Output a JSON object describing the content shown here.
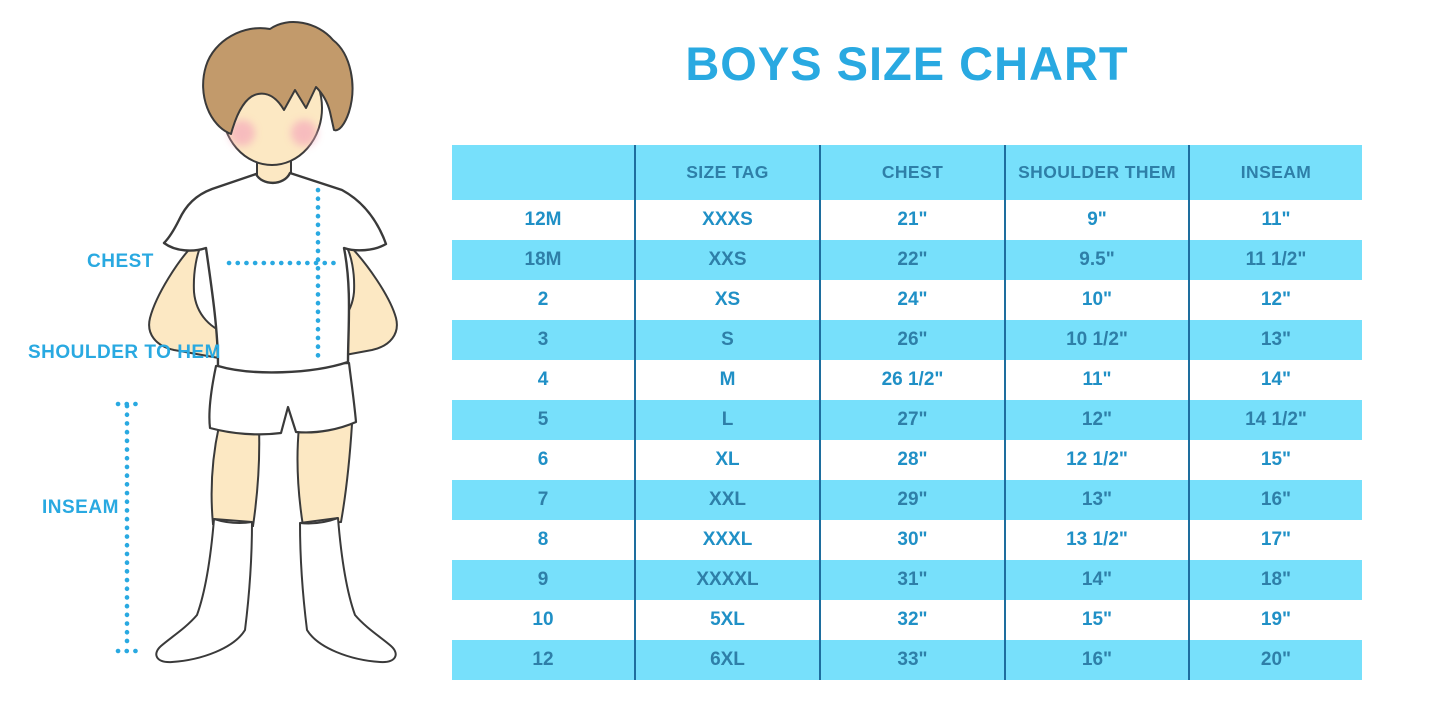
{
  "title": "BOYS SIZE CHART",
  "figure": {
    "illustration": "boy-in-white-tshirt-shorts-and-knee-socks",
    "labels": {
      "chest": "CHEST",
      "shoulder_to_hem": "SHOULDER TO HEM",
      "inseam": "INSEAM"
    }
  },
  "chart_data": {
    "type": "table",
    "title": "BOYS SIZE CHART",
    "columns": [
      "",
      "SIZE TAG",
      "CHEST",
      "SHOULDER THEM",
      "INSEAM"
    ],
    "rows": [
      [
        "12M",
        "XXXS",
        "21\"",
        "9\"",
        "11\""
      ],
      [
        "18M",
        "XXS",
        "22\"",
        "9.5\"",
        "11 1/2\""
      ],
      [
        "2",
        "XS",
        "24\"",
        "10\"",
        "12\""
      ],
      [
        "3",
        "S",
        "26\"",
        "10 1/2\"",
        "13\""
      ],
      [
        "4",
        "M",
        "26 1/2\"",
        "11\"",
        "14\""
      ],
      [
        "5",
        "L",
        "27\"",
        "12\"",
        "14 1/2\""
      ],
      [
        "6",
        "XL",
        "28\"",
        "12 1/2\"",
        "15\""
      ],
      [
        "7",
        "XXL",
        "29\"",
        "13\"",
        "16\""
      ],
      [
        "8",
        "XXXL",
        "30\"",
        "13 1/2\"",
        "17\""
      ],
      [
        "9",
        "XXXXL",
        "31\"",
        "14\"",
        "18\""
      ],
      [
        "10",
        "5XL",
        "32\"",
        "15\"",
        "19\""
      ],
      [
        "12",
        "6XL",
        "33\"",
        "16\"",
        "20\""
      ]
    ],
    "layout_hints": {
      "striping": "header and alternate rows cyan, first data row white",
      "grid": "vertical column dividers only",
      "legend_position": "none"
    }
  },
  "colors": {
    "accent": "#29a9e1",
    "cyan": "#77e0fb",
    "header-text": "#2e7fa8",
    "cell-text": "#2090c6",
    "divider": "#1e6e9e",
    "skin": "#fce8c3",
    "hair": "#c29a6b",
    "outline": "#3a3a3a",
    "blush": "#f5aabc"
  }
}
